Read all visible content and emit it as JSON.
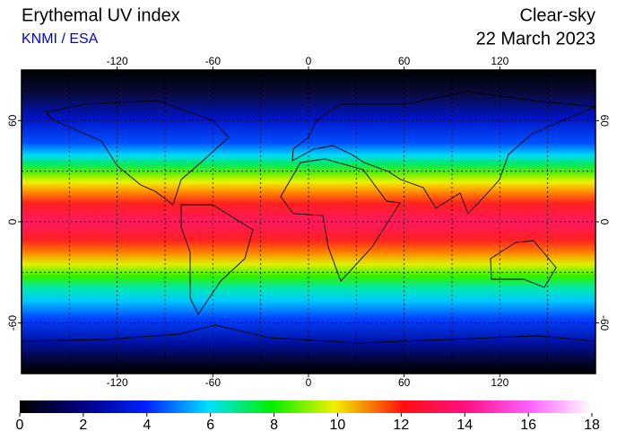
{
  "header": {
    "title": "Erythemal UV index",
    "source": "KNMI / ESA",
    "condition": "Clear-sky",
    "date": "22 March 2023"
  },
  "map": {
    "xlim": [
      -180,
      180
    ],
    "ylim": [
      -90,
      90
    ],
    "xticks": [
      -120,
      -60,
      0,
      60,
      120
    ],
    "yticks": [
      60,
      0,
      -60
    ]
  },
  "colorbar": {
    "lim": [
      0,
      18
    ],
    "ticks": [
      0,
      2,
      4,
      6,
      8,
      10,
      12,
      14,
      16,
      18
    ]
  }
}
